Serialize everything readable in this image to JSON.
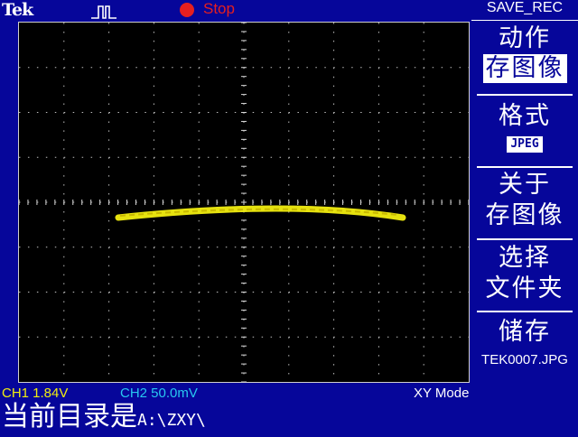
{
  "header": {
    "brand": "Tek",
    "run_state": "Stop",
    "colors": {
      "run": "#e61f1f",
      "bg": "#06069a"
    }
  },
  "menu": {
    "title": "SAVE_REC",
    "action_label": "动作",
    "action_value": "存图像",
    "format_label": "格式",
    "format_value": "JPEG",
    "about_line1": "关于",
    "about_line2": "存图像",
    "select_line1": "选择",
    "select_line2": "文件夹",
    "save_label": "储存",
    "save_filename": "TEK0007.JPG"
  },
  "status": {
    "ch1": "CH1  1.84V",
    "ch2": "CH2  50.0mV",
    "mode": "XY Mode"
  },
  "directory": {
    "label": "当前目录是",
    "path": "A:\\ZXY\\"
  },
  "trace": {
    "color": "#f2ee10"
  }
}
